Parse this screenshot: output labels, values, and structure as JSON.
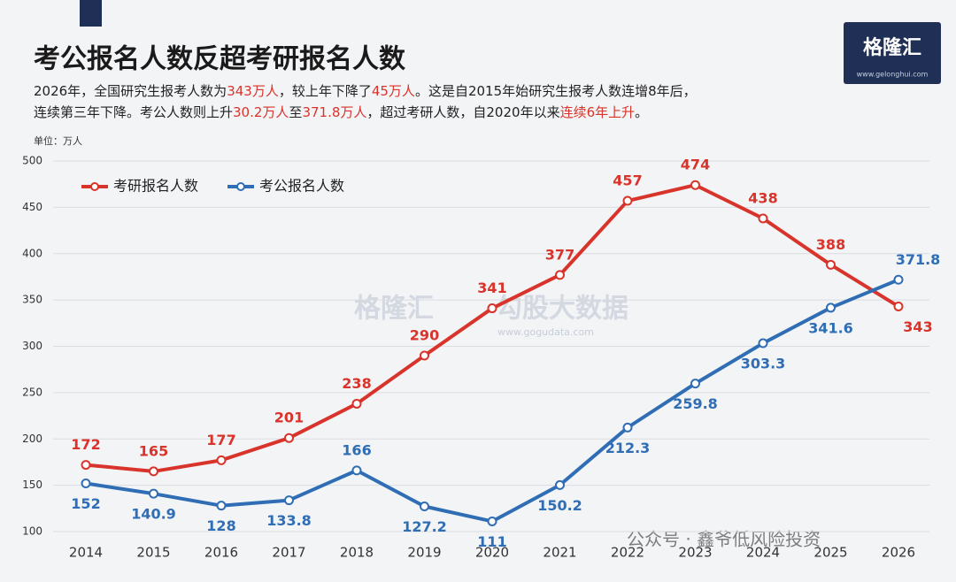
{
  "chart_data": {
    "type": "line",
    "title": "考公报名人数反超考研报名人数",
    "subtitle": [
      [
        {
          "text": "2026年，全国研究生报考人数为"
        },
        {
          "text": "343万人",
          "color": "#d9342b"
        },
        {
          "text": "，较上年下降了"
        },
        {
          "text": "45万人",
          "color": "#d9342b"
        },
        {
          "text": "。这是自2015年始研究生报考人数连增8年后，"
        }
      ],
      [
        {
          "text": "连续第三年下降。考公人数则上升"
        },
        {
          "text": "30.2万人",
          "color": "#d9342b"
        },
        {
          "text": "至"
        },
        {
          "text": "371.8万人",
          "color": "#d9342b"
        },
        {
          "text": "，超过考研人数，自2020年以来"
        },
        {
          "text": "连续6年上升",
          "color": "#d9342b"
        },
        {
          "text": "。"
        }
      ]
    ],
    "unit_label": "单位：万人",
    "categories": [
      "2014",
      "2015",
      "2016",
      "2017",
      "2018",
      "2019",
      "2020",
      "2021",
      "2022",
      "2023",
      "2024",
      "2025",
      "2026"
    ],
    "series": [
      {
        "name": "考研报名人数",
        "color": "#d9342b",
        "values": [
          172,
          165,
          177,
          201,
          238,
          290,
          341,
          377,
          457,
          474,
          438,
          388,
          343
        ]
      },
      {
        "name": "考公报名人数",
        "color": "#2f6db5",
        "values": [
          152,
          140.9,
          128,
          133.8,
          166,
          127.2,
          111,
          150.2,
          212.3,
          259.8,
          303.3,
          341.6,
          371.8
        ]
      }
    ],
    "ylim": [
      100,
      500
    ],
    "yticks": [
      100,
      150,
      200,
      250,
      300,
      350,
      400,
      450,
      500
    ],
    "grid": true,
    "legend": "top-left",
    "logo": {
      "name": "格隆汇",
      "url": "www.gelonghui.com"
    },
    "watermarks": [
      "格隆汇",
      "勾股大数据",
      "www.gogudata.com",
      "公众号 · 鑫爷低风险投资"
    ]
  }
}
